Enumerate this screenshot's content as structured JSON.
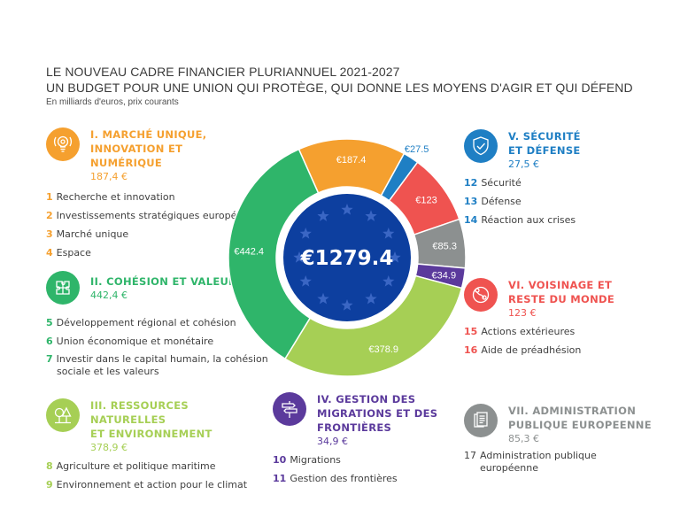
{
  "header": {
    "title_line1": "LE NOUVEAU CADRE FINANCIER PLURIANNUEL 2021-2027",
    "title_line2": "UN BUDGET POUR UNE UNION QUI PROTÈGE, QUI DONNE LES MOYENS D'AGIR ET QUI DÉFEND",
    "subtitle": "En milliards d'euros, prix courants"
  },
  "center_total": "€1279.4",
  "sections": [
    {
      "id": "I",
      "title_line1": "I. MARCHÉ UNIQUE,",
      "title_line2": "INNOVATION ET NUMÉRIQUE",
      "amount": "187,4 €",
      "color": "#f5a02f",
      "icon": "lightbulb-icon",
      "items": [
        {
          "num": "1",
          "label": "Recherche et innovation"
        },
        {
          "num": "2",
          "label": "Investissements stratégiques européens"
        },
        {
          "num": "3",
          "label": "Marché unique"
        },
        {
          "num": "4",
          "label": "Espace"
        }
      ]
    },
    {
      "id": "II",
      "title_line1": "II. COHÉSION ET VALEURS",
      "amount": "442,4 €",
      "color": "#2fb56a",
      "icon": "puzzle-icon",
      "items": [
        {
          "num": "5",
          "label": "Développement régional et cohésion"
        },
        {
          "num": "6",
          "label": "Union économique et monétaire"
        },
        {
          "num": "7",
          "label": "Investir dans le capital humain, la cohésion sociale et les valeurs"
        }
      ]
    },
    {
      "id": "III",
      "title_line1": "III. RESSOURCES NATURELLES",
      "title_line2": "ET ENVIRONNEMENT",
      "amount": "378,9 €",
      "color": "#a6cf55",
      "icon": "trees-icon",
      "items": [
        {
          "num": "8",
          "label": "Agriculture et politique maritime"
        },
        {
          "num": "9",
          "label": "Environnement et action pour le climat"
        }
      ]
    },
    {
      "id": "IV",
      "title_line1": "IV. GESTION DES",
      "title_line2": "MIGRATIONS ET DES",
      "title_line3": "FRONTIÈRES",
      "amount": "34,9 €",
      "color": "#5b3a9c",
      "icon": "signpost-icon",
      "items": [
        {
          "num": "10",
          "label": "Migrations"
        },
        {
          "num": "11",
          "label": "Gestion des frontières"
        }
      ]
    },
    {
      "id": "V",
      "title_line1": "V. SÉCURITÉ",
      "title_line2": "ET DÉFENSE",
      "amount": "27,5 €",
      "color": "#1f7fc4",
      "icon": "shield-check-icon",
      "items": [
        {
          "num": "12",
          "label": "Sécurité"
        },
        {
          "num": "13",
          "label": "Défense"
        },
        {
          "num": "14",
          "label": "Réaction aux crises"
        }
      ]
    },
    {
      "id": "VI",
      "title_line1": "VI. VOISINAGE ET",
      "title_line2": "RESTE DU MONDE",
      "amount": "123 €",
      "color": "#ef5350",
      "icon": "globe-icon",
      "items": [
        {
          "num": "15",
          "label": "Actions extérieures"
        },
        {
          "num": "16",
          "label": "Aide de préadhésion"
        }
      ]
    },
    {
      "id": "VII",
      "title_line1": "VII. ADMINISTRATION",
      "title_line2": "PUBLIQUE EUROPEENNE",
      "amount": "85,3 €",
      "color": "#8c9090",
      "icon": "documents-icon",
      "items": [
        {
          "num": "17",
          "label": "Administration publique européenne"
        }
      ]
    }
  ],
  "chart_data": {
    "type": "pie",
    "subtype": "donut",
    "title": "LE NOUVEAU CADRE FINANCIER PLURIANNUEL 2021-2027",
    "subtitle": "En milliards d'euros, prix courants",
    "unit": "milliards d'euros",
    "total": 1279.4,
    "total_label": "€1279.4",
    "categories": [
      "I. Marché unique, innovation et numérique",
      "V. Sécurité et défense",
      "VI. Voisinage et reste du monde",
      "VII. Administration publique européenne",
      "IV. Gestion des migrations et des frontières",
      "III. Ressources naturelles et environnement",
      "II. Cohésion et valeurs"
    ],
    "values": [
      187.4,
      27.5,
      123,
      85.3,
      34.9,
      378.9,
      442.4
    ],
    "labels": [
      "€187.4",
      "€27.5",
      "€123",
      "€85.3",
      "€34.9",
      "€378.9",
      "€442.4"
    ],
    "colors": [
      "#f5a02f",
      "#1f7fc4",
      "#ef5350",
      "#8c9090",
      "#5b3a9c",
      "#a6cf55",
      "#2fb56a"
    ],
    "start_angle_deg": -24,
    "direction": "clockwise",
    "legend_position": "surrounding"
  }
}
